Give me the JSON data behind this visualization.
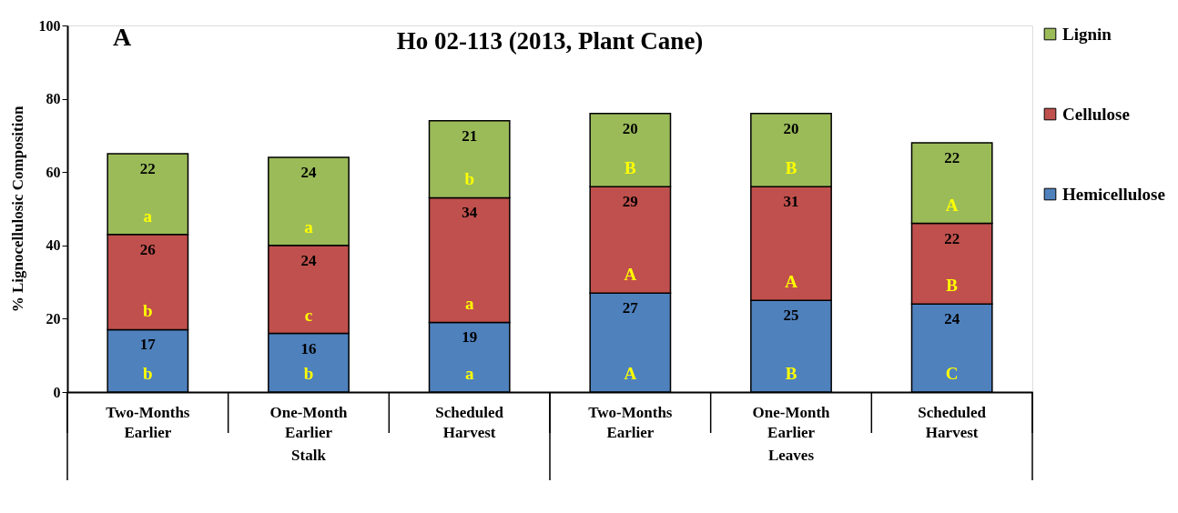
{
  "chart_data": {
    "type": "bar",
    "title": "Ho 02-113 (2013, Plant Cane)",
    "ylabel": "% Lignocellulosic Composition",
    "categories": [
      "Two-Months Earlier",
      "One-Month Earlier",
      "Scheduled Harvest",
      "Two-Months Earlier",
      "One-Month Earlier",
      "Scheduled Harvest"
    ],
    "stacked": true,
    "data_labels": true,
    "legend": "right",
    "grid": false,
    "ylim": [
      0,
      100
    ],
    "yticks": [
      0,
      20,
      40,
      60,
      80,
      100
    ],
    "series": [
      {
        "name": "Hemicellulose",
        "color": "#4f81bd",
        "values": [
          17,
          16,
          19,
          27,
          25,
          24
        ]
      },
      {
        "name": "Cellulose",
        "color": "#c0504d",
        "values": [
          26,
          24,
          34,
          29,
          31,
          22
        ]
      },
      {
        "name": "Lignin",
        "color": "#9bbb59",
        "values": [
          22,
          24,
          21,
          20,
          20,
          22
        ]
      }
    ],
    "annotations": [
      "A",
      "Stalk",
      "Leaves",
      "b",
      "b",
      "a",
      "b",
      "c",
      "a",
      "a",
      "a",
      "b",
      "A",
      "A",
      "B",
      "B",
      "A",
      "B",
      "C",
      "B",
      "A"
    ]
  }
}
